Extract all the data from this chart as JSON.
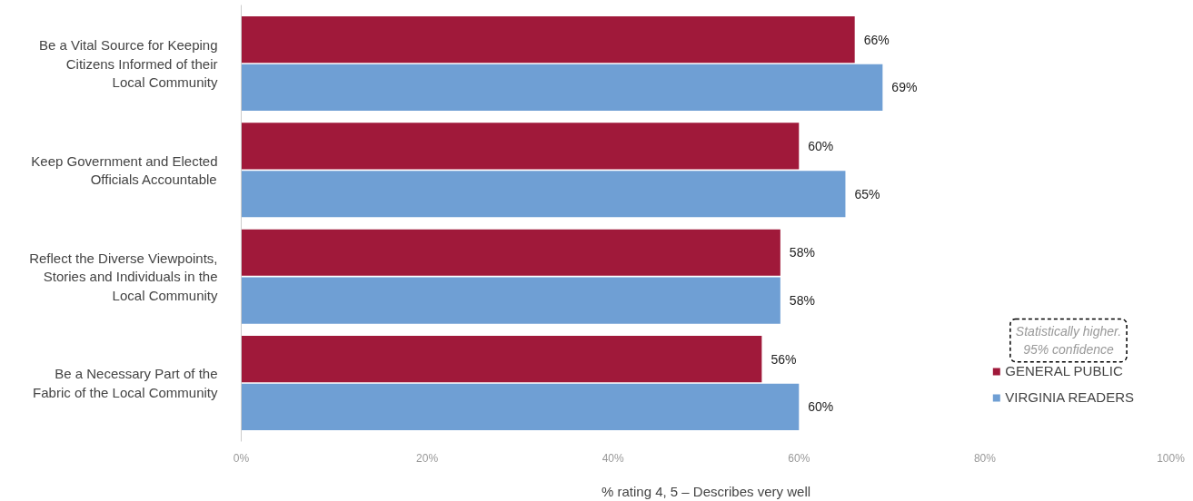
{
  "chart_data": {
    "type": "bar",
    "orientation": "horizontal",
    "categories": [
      "Be a Vital Source for Keeping Citizens Informed of their Local Community",
      "Keep Government and Elected Officials Accountable",
      "Reflect the Diverse Viewpoints, Stories and Individuals in the Local Community",
      "Be a Necessary Part of the Fabric of the Local Community"
    ],
    "series": [
      {
        "name": "GENERAL PUBLIC",
        "color": "#a0193a",
        "values": [
          66,
          60,
          58,
          56
        ],
        "value_labels": [
          "66%",
          "60%",
          "58%",
          "56%"
        ]
      },
      {
        "name": "VIRGINIA READERS",
        "color": "#6f9fd4",
        "values": [
          69,
          65,
          58,
          60
        ],
        "value_labels": [
          "69%",
          "65%",
          "58%",
          "60%"
        ]
      }
    ],
    "xlabel": "% rating 4, 5 – Describes very well",
    "xlim": [
      0,
      100
    ],
    "xticks": [
      {
        "value": 0,
        "label": "0%"
      },
      {
        "value": 20,
        "label": "20%"
      },
      {
        "value": 40,
        "label": "40%"
      },
      {
        "value": 60,
        "label": "60%"
      },
      {
        "value": 80,
        "label": "80%"
      },
      {
        "value": 100,
        "label": "100%"
      }
    ],
    "annotations": [
      "Statistically higher. 95% confidence"
    ],
    "legend": "bottom right",
    "grid": false
  }
}
